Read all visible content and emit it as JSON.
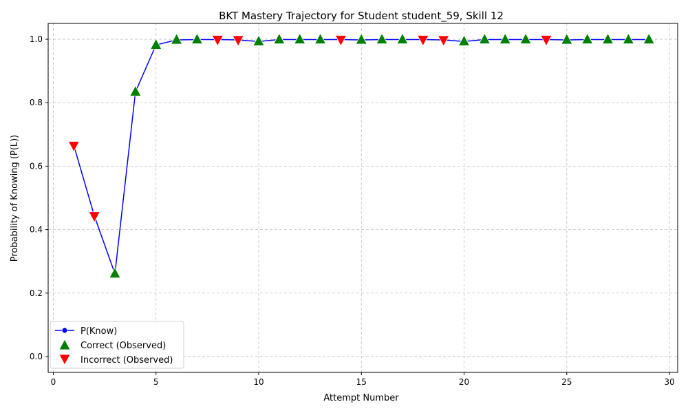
{
  "chart_data": {
    "type": "line",
    "title": "BKT Mastery Trajectory for Student student_59, Skill 12",
    "xlabel": "Attempt Number",
    "ylabel": "Probability of Knowing (P(L))",
    "xlim": [
      -0.25,
      30.4
    ],
    "ylim": [
      -0.05,
      1.05
    ],
    "xticks": [
      0,
      5,
      10,
      15,
      20,
      25,
      30
    ],
    "yticks": [
      0.0,
      0.2,
      0.4,
      0.6,
      0.8,
      1.0
    ],
    "grid": true,
    "legend_position": "lower-left",
    "series": [
      {
        "name": "P(Know)",
        "color": "#0000ff",
        "x": [
          1,
          2,
          3,
          4,
          5,
          6,
          7,
          8,
          9,
          10,
          11,
          12,
          13,
          14,
          15,
          16,
          17,
          18,
          19,
          20,
          21,
          22,
          23,
          24,
          25,
          26,
          27,
          28,
          29
        ],
        "values": [
          0.665,
          0.443,
          0.261,
          0.834,
          0.982,
          0.998,
          0.999,
          0.999,
          0.998,
          0.993,
          0.999,
          0.999,
          0.999,
          0.999,
          0.998,
          0.999,
          0.999,
          0.999,
          0.998,
          0.993,
          0.999,
          0.999,
          0.999,
          0.999,
          0.998,
          0.999,
          0.999,
          0.999,
          0.999
        ]
      }
    ],
    "observations": {
      "correct": {
        "name": "Correct (Observed)",
        "color": "#008000",
        "x": [
          3,
          4,
          5,
          6,
          7,
          10,
          11,
          12,
          13,
          15,
          16,
          17,
          20,
          21,
          22,
          23,
          25,
          26,
          27,
          28,
          29
        ]
      },
      "incorrect": {
        "name": "Incorrect (Observed)",
        "color": "#ff0000",
        "x": [
          1,
          2,
          8,
          9,
          14,
          18,
          19,
          24
        ]
      }
    }
  }
}
